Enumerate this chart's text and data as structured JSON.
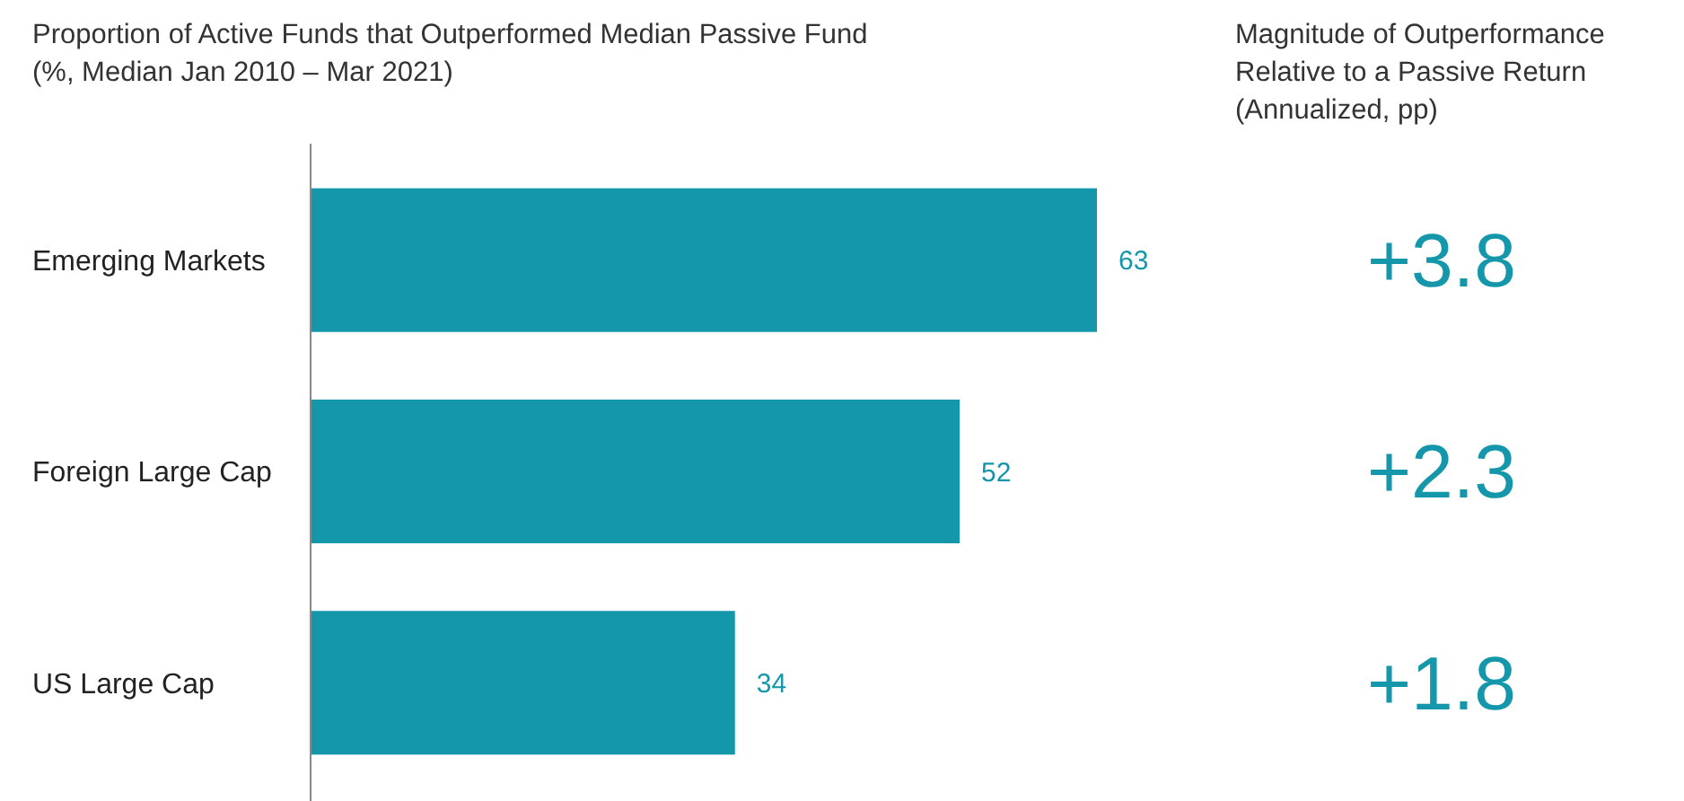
{
  "chart_data": [
    {
      "type": "bar",
      "orientation": "horizontal",
      "title": "Proportion of Active Funds that Outperformed Median Passive Fund",
      "subtitle": "(%, Median Jan 2010 – Mar 2021)",
      "categories": [
        "Emerging Markets",
        "Foreign Large Cap",
        "US Large Cap"
      ],
      "values": [
        63,
        52,
        34
      ],
      "color": "#1597ab",
      "data_labels": true,
      "tick_labels": "y"
    },
    {
      "type": "other",
      "title": "Magnitude of Outperformance Relative to a Passive Return",
      "subtitle": "(Annualized, pp)",
      "annotations": [
        "+3.8",
        "+2.3",
        "+1.8"
      ]
    }
  ]
}
